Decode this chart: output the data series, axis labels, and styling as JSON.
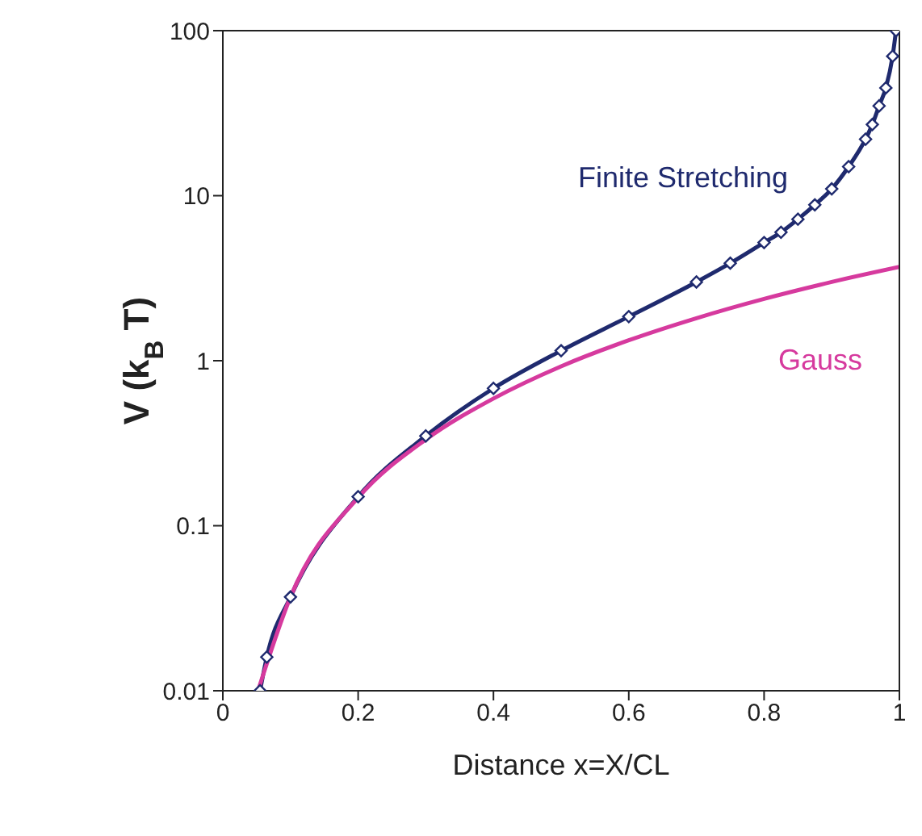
{
  "chart_data": {
    "type": "line",
    "xlabel": "Distance x=X/CL",
    "ylabel": "V (k$_{B}$T)",
    "log": "y",
    "xlim": [
      0,
      1
    ],
    "xticks": [
      0,
      0.2,
      0.4,
      0.6,
      0.8,
      1
    ],
    "ylim": [
      0.01,
      100
    ],
    "yticks": [
      0.01,
      0.1,
      1,
      10,
      100
    ],
    "series": [
      {
        "name": "Finite Stretching",
        "color": "#1f2a6e",
        "marker": "diamond",
        "x": [
          0.055,
          0.065,
          0.1,
          0.2,
          0.3,
          0.4,
          0.5,
          0.6,
          0.7,
          0.75,
          0.8,
          0.825,
          0.85,
          0.875,
          0.9,
          0.925,
          0.95,
          0.96,
          0.97,
          0.98,
          0.99,
          0.995
        ],
        "values": [
          0.01,
          0.016,
          0.037,
          0.15,
          0.35,
          0.68,
          1.15,
          1.85,
          3.0,
          3.9,
          5.2,
          6.0,
          7.2,
          8.8,
          11,
          15,
          22,
          27,
          35,
          45,
          70,
          100
        ]
      },
      {
        "name": "Gauss",
        "color": "#d63a9e",
        "marker": "none",
        "x": [
          0.052,
          0.1,
          0.2,
          0.3,
          0.4,
          0.5,
          0.6,
          0.7,
          0.8,
          0.9,
          1.0
        ],
        "values": [
          0.01,
          0.037,
          0.148,
          0.333,
          0.59,
          0.925,
          1.33,
          1.81,
          2.37,
          3.0,
          3.7
        ]
      }
    ]
  }
}
